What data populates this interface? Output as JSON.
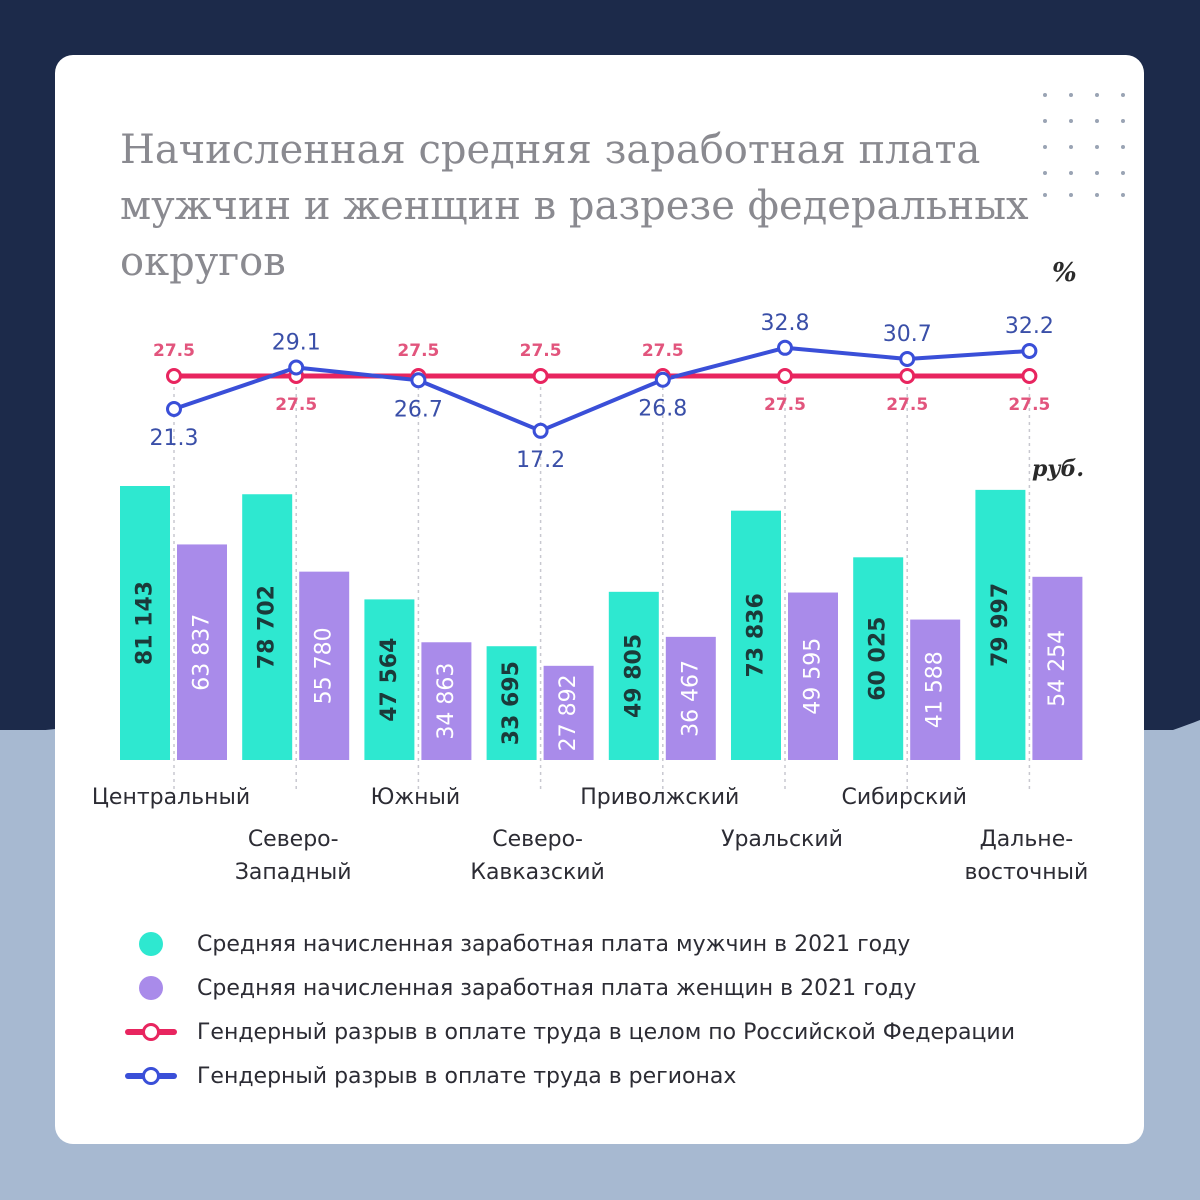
{
  "title": "Начисленная средняя заработная плата мужчин и женщин в разрезе федеральных округов",
  "units": {
    "percent": "%",
    "rubles": "руб."
  },
  "colors": {
    "men": "#2ee8d0",
    "women": "#a98bea",
    "national_gap": "#e8255f",
    "regional_gap": "#3a4fd8"
  },
  "legend": [
    {
      "label": "Средняя начисленная заработная плата мужчин в 2021 году",
      "kind": "dot",
      "color": "#2ee8d0"
    },
    {
      "label": "Средняя начисленная заработная плата женщин в 2021 году",
      "kind": "dot",
      "color": "#a98bea"
    },
    {
      "label": "Гендерный разрыв в оплате труда в целом по Российской Федерации",
      "kind": "line",
      "color": "#e8255f"
    },
    {
      "label": "Гендерный разрыв в оплате труда в регионах",
      "kind": "line",
      "color": "#3a4fd8"
    }
  ],
  "chart_data": {
    "type": "bar",
    "categories": [
      [
        "Центральный"
      ],
      [
        "Северо-",
        "Западный"
      ],
      [
        "Южный"
      ],
      [
        "Северо-",
        "Кавказский"
      ],
      [
        "Приволжский"
      ],
      [
        "Уральский"
      ],
      [
        "Сибирский"
      ],
      [
        "Дальне-",
        "восточный"
      ]
    ],
    "series": [
      {
        "name": "Средняя начисленная заработная плата мужчин в 2021 году",
        "values": [
          81143,
          78702,
          47564,
          33695,
          49805,
          73836,
          60025,
          79997
        ],
        "labels": [
          "81 143",
          "78 702",
          "47 564",
          "33 695",
          "49 805",
          "73 836",
          "60 025",
          "79 997"
        ]
      },
      {
        "name": "Средняя начисленная заработная плата женщин в 2021 году",
        "values": [
          63837,
          55780,
          34863,
          27892,
          36467,
          49595,
          41588,
          54254
        ],
        "labels": [
          "63 837",
          "55 780",
          "34 863",
          "27 892",
          "36 467",
          "49 595",
          "41 588",
          "54 254"
        ]
      }
    ],
    "lines": [
      {
        "name": "Гендерный разрыв в оплате труда в целом по Российской Федерации",
        "values": [
          27.5,
          27.5,
          27.5,
          27.5,
          27.5,
          27.5,
          27.5,
          27.5
        ],
        "labels": [
          "27.5",
          "27.5",
          "27.5",
          "27.5",
          "27.5",
          "27.5",
          "27.5",
          "27.5"
        ]
      },
      {
        "name": "Гендерный разрыв в оплате труда в регионах",
        "values": [
          21.3,
          29.1,
          26.7,
          17.2,
          26.8,
          32.8,
          30.7,
          32.2
        ],
        "labels": [
          "21.3",
          "29.1",
          "26.7",
          "17.2",
          "26.8",
          "32.8",
          "30.7",
          "32.2"
        ]
      }
    ]
  }
}
